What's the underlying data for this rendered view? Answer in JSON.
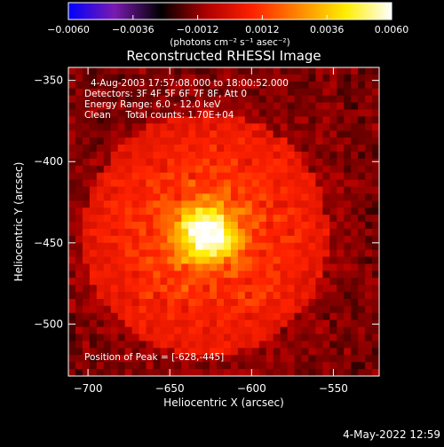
{
  "chart_data": {
    "type": "heatmap",
    "title": "Reconstructed RHESSI Image",
    "xlabel": "Heliocentric X (arcsec)",
    "ylabel": "Heliocentric Y (arcsec)",
    "xlim": [
      -712,
      -522
    ],
    "ylim": [
      -532,
      -342
    ],
    "x_ticks": [
      -700,
      -650,
      -600,
      -550
    ],
    "y_ticks": [
      -350,
      -400,
      -450,
      -500
    ],
    "colorbar": {
      "range": [
        -0.006,
        0.006
      ],
      "tick_values": [
        -0.006,
        -0.0036,
        -0.0012,
        0.0012,
        0.0036,
        0.006
      ],
      "tick_labels": [
        "-0.0060",
        "-0.0036",
        "-0.0012",
        "0.0012",
        "0.0036",
        "0.0060"
      ],
      "label": "(photons cm⁻² s⁻¹ asec⁻²)"
    },
    "peak": {
      "x": -628,
      "y": -445,
      "value": 0.006
    },
    "grid": false,
    "annotations": {
      "time": "4-Aug-2003 17:57:08.000 to 18:00:52.000",
      "detectors": "Detectors: 3F 4F 5F 6F 7F 8F, Att 0",
      "energy": "Energy Range: 6.0 - 12.0 keV",
      "clean": "Clean     Total counts: 1.70E+04",
      "peak_label": "Position of Peak = [-628,-445]"
    },
    "colors": {
      "background": "#000000",
      "text": "#ffffff",
      "colormap": [
        "#0000ff",
        "#7a1ab0",
        "#000000",
        "#b00000",
        "#ff2200",
        "#ff8800",
        "#ffee00",
        "#ffffff"
      ]
    }
  },
  "footer": {
    "date": "4-May-2022 12:59"
  }
}
